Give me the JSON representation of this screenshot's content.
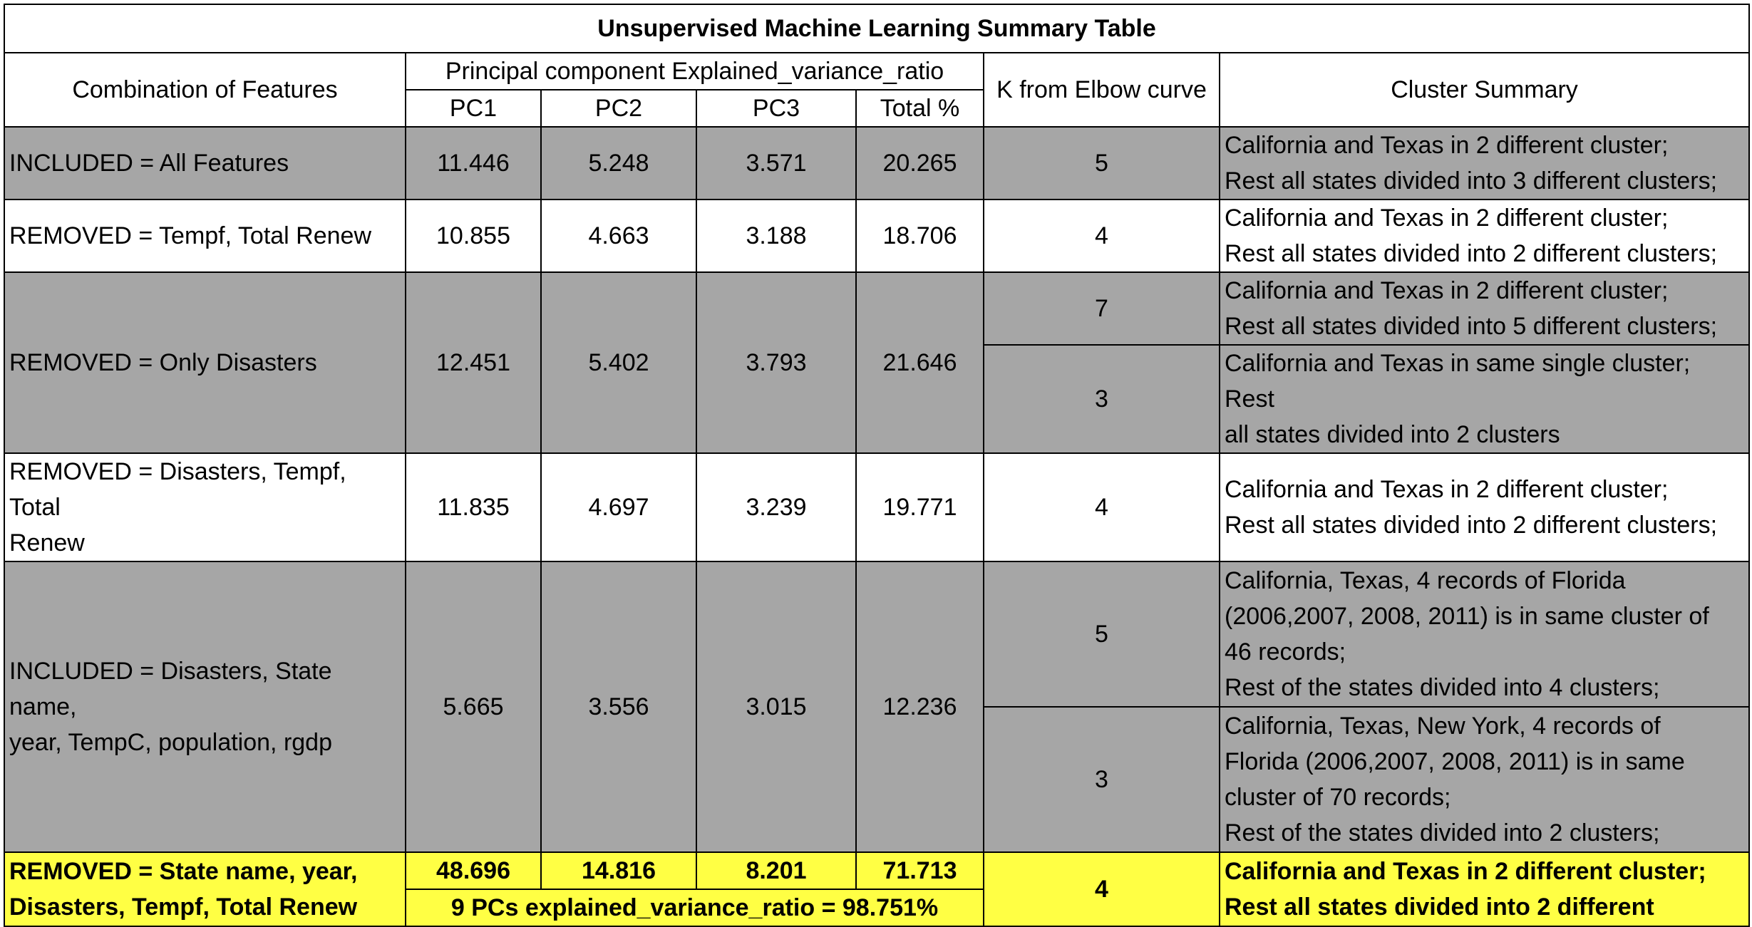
{
  "title": "Unsupervised Machine Learning Summary Table",
  "headers": {
    "combination": "Combination of Features",
    "pc_group": "Principal component Explained_variance_ratio",
    "pc1": "PC1",
    "pc2": "PC2",
    "pc3": "PC3",
    "total": "Total %",
    "k": "K from Elbow curve",
    "cluster": "Cluster Summary"
  },
  "rows": [
    {
      "feature": "INCLUDED = All Features",
      "pc1": "11.446",
      "pc2": "5.248",
      "pc3": "3.571",
      "total": "20.265",
      "k": [
        "5"
      ],
      "summary": [
        [
          "California and Texas in 2 different cluster;",
          "Rest all states divided into 3 different clusters;"
        ]
      ]
    },
    {
      "feature": "REMOVED = Tempf, Total Renew",
      "pc1": "10.855",
      "pc2": "4.663",
      "pc3": "3.188",
      "total": "18.706",
      "k": [
        "4"
      ],
      "summary": [
        [
          "California and Texas in 2 different cluster;",
          "Rest all states divided into 2 different clusters;"
        ]
      ]
    },
    {
      "feature": "REMOVED = Only Disasters",
      "pc1": "12.451",
      "pc2": "5.402",
      "pc3": "3.793",
      "total": "21.646",
      "k": [
        "7",
        "3"
      ],
      "summary": [
        [
          "California and Texas in 2 different cluster;",
          "Rest all states divided into 5 different clusters;"
        ],
        [
          "California and Texas in same single cluster; Rest",
          "all states divided into 2 clusters"
        ]
      ]
    },
    {
      "feature": [
        "REMOVED = Disasters, Tempf, Total",
        "Renew"
      ],
      "pc1": "11.835",
      "pc2": "4.697",
      "pc3": "3.239",
      "total": "19.771",
      "k": [
        "4"
      ],
      "summary": [
        [
          "California and Texas in 2 different cluster;",
          "Rest all states divided into 2 different clusters;"
        ]
      ]
    },
    {
      "feature": [
        "INCLUDED = Disasters, State name,",
        "year, TempC, population, rgdp"
      ],
      "pc1": "5.665",
      "pc2": "3.556",
      "pc3": "3.015",
      "total": "12.236",
      "k": [
        "5",
        "3"
      ],
      "summary": [
        [
          "California, Texas, 4 records of Florida",
          "(2006,2007, 2008, 2011) is in same cluster of",
          "46 records;",
          "Rest of the states divided into 4 clusters;"
        ],
        [
          "California, Texas, New York, 4 records of",
          "Florida (2006,2007, 2008, 2011) is in same",
          "cluster of 70 records;",
          "Rest of the states divided into 2 clusters;"
        ]
      ]
    },
    {
      "feature": [
        "REMOVED = State name, year,",
        "Disasters, Tempf, Total Renew"
      ],
      "pc1": "48.696",
      "pc2": "14.816",
      "pc3": "8.201",
      "total": "71.713",
      "pcs_note": "9 PCs explained_variance_ratio = 98.751%",
      "k": [
        "4"
      ],
      "summary": [
        [
          "California and Texas in 2 different cluster;",
          "Rest all states divided into 2 different"
        ]
      ]
    }
  ],
  "colors": {
    "gray_row": "#a6a6a6",
    "highlight_row": "#ffff44",
    "border": "#000000"
  }
}
